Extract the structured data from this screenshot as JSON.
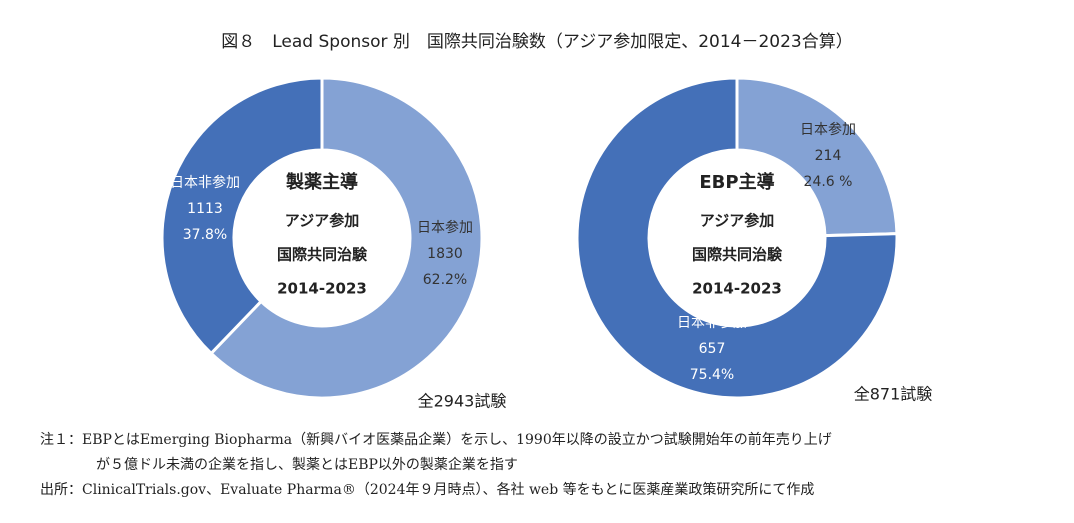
{
  "title": "図８　Lead Sponsor 別　国際共同治験数（アジア参加限定、2014－2023合算）",
  "chart_data": [
    {
      "type": "pie",
      "center_text": [
        "製薬主導",
        "アジア参加",
        "国際共同治験",
        "2014-2023"
      ],
      "categories": [
        "日本参加",
        "日本非参加"
      ],
      "values": [
        1830,
        1113
      ],
      "percent_labels": [
        "62.2%",
        "37.8%"
      ],
      "colors": [
        "#84a2d4",
        "#4470b8"
      ],
      "label_colors": [
        "#333333",
        "#ffffff"
      ],
      "total": "全2943試験"
    },
    {
      "type": "pie",
      "center_text": [
        "EBP主導",
        "アジア参加",
        "国際共同治験",
        "2014-2023"
      ],
      "categories": [
        "日本参加",
        "日本非参加"
      ],
      "values": [
        214,
        657
      ],
      "percent_labels": [
        "24.6 %",
        "75.4%"
      ],
      "colors": [
        "#84a2d4",
        "#4470b8"
      ],
      "label_colors": [
        "#333333",
        "#ffffff"
      ],
      "total": "全871試験"
    }
  ],
  "notes": [
    "注１：EBPとはEmerging Biopharma（新興バイオ医薬品企業）を示し、1990年以降の設立かつ試験開始年の前年売り上げ",
    "が５億ドル未満の企業を指し、製薬とはEBP以外の製薬企業を指す",
    "出所：ClinicalTrials.gov、Evaluate Pharma®（2024年９月時点）、各社 web 等をもとに医薬産業政策研究所にて作成"
  ]
}
